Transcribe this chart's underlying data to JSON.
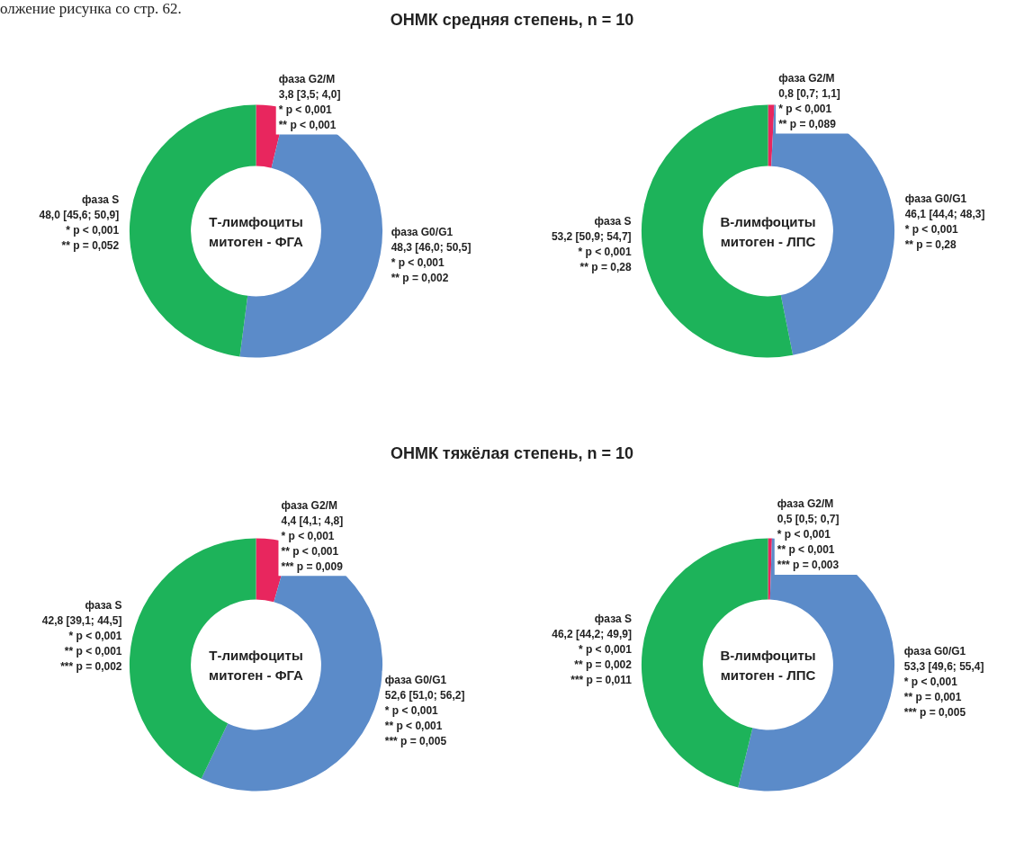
{
  "chart_data": [
    {
      "type": "donut",
      "title": "ОНМК средняя степень, n = 10",
      "categories": [
        "фаза G2/M",
        "фаза G0/G1",
        "фаза S"
      ],
      "values": [
        3.8,
        48.3,
        48.0
      ],
      "colors": [
        "#e8265e",
        "#5b8bc9",
        "#1db35a"
      ],
      "value_labels": [
        "3,8 [3,5; 4,0]\n* p < 0,001\n** p < 0,001",
        "48,3 [46,0; 50,5]\n* p < 0,001\n** p = 0,002",
        "48,0 [45,6; 50,9]\n* p < 0,001\n** p = 0,052"
      ],
      "annotations": [
        "Т-лимфоциты\nмитоген - ФГА",
        "олжение рисунка со стр. 62."
      ]
    },
    {
      "type": "donut",
      "categories": [
        "фаза G2/M",
        "фаза G0/G1",
        "фаза S"
      ],
      "values": [
        0.8,
        46.1,
        53.2
      ],
      "colors": [
        "#e8265e",
        "#5b8bc9",
        "#1db35a"
      ],
      "value_labels": [
        "0,8 [0,7; 1,1]\n* p < 0,001\n** p = 0,089",
        "46,1 [44,4; 48,3]\n* p < 0,001\n** p = 0,28",
        "53,2 [50,9; 54,7]\n* p < 0,001\n** p = 0,28"
      ],
      "annotations": [
        "В-лимфоциты\nмитоген - ЛПС"
      ]
    },
    {
      "type": "donut",
      "title": "ОНМК тяжёлая степень, n = 10",
      "categories": [
        "фаза G2/M",
        "фаза G0/G1",
        "фаза S"
      ],
      "values": [
        4.4,
        52.6,
        42.8
      ],
      "colors": [
        "#e8265e",
        "#5b8bc9",
        "#1db35a"
      ],
      "value_labels": [
        "4,4 [4,1; 4,8]\n* p < 0,001\n** p < 0,001\n*** p = 0,009",
        "52,6 [51,0; 56,2]\n* p < 0,001\n** p < 0,001\n*** p = 0,005",
        "42,8 [39,1; 44,5]\n* p < 0,001\n** p < 0,001\n*** p = 0,002"
      ],
      "annotations": [
        "Т-лимфоциты\nмитоген - ФГА"
      ]
    },
    {
      "type": "donut",
      "categories": [
        "фаза G2/M",
        "фаза G0/G1",
        "фаза S"
      ],
      "values": [
        0.5,
        53.3,
        46.2
      ],
      "colors": [
        "#e8265e",
        "#5b8bc9",
        "#1db35a"
      ],
      "value_labels": [
        "0,5 [0,5; 0,7]\n* p < 0,001\n** p < 0,001\n*** p = 0,003",
        "53,3 [49,6; 55,4]\n* p < 0,001\n** p = 0,001\n*** p = 0,005",
        "46,2 [44,2; 49,9]\n* p < 0,001\n** p = 0,002\n*** p = 0,011"
      ],
      "annotations": [
        "В-лимфоциты\nмитоген - ЛПС"
      ]
    }
  ]
}
